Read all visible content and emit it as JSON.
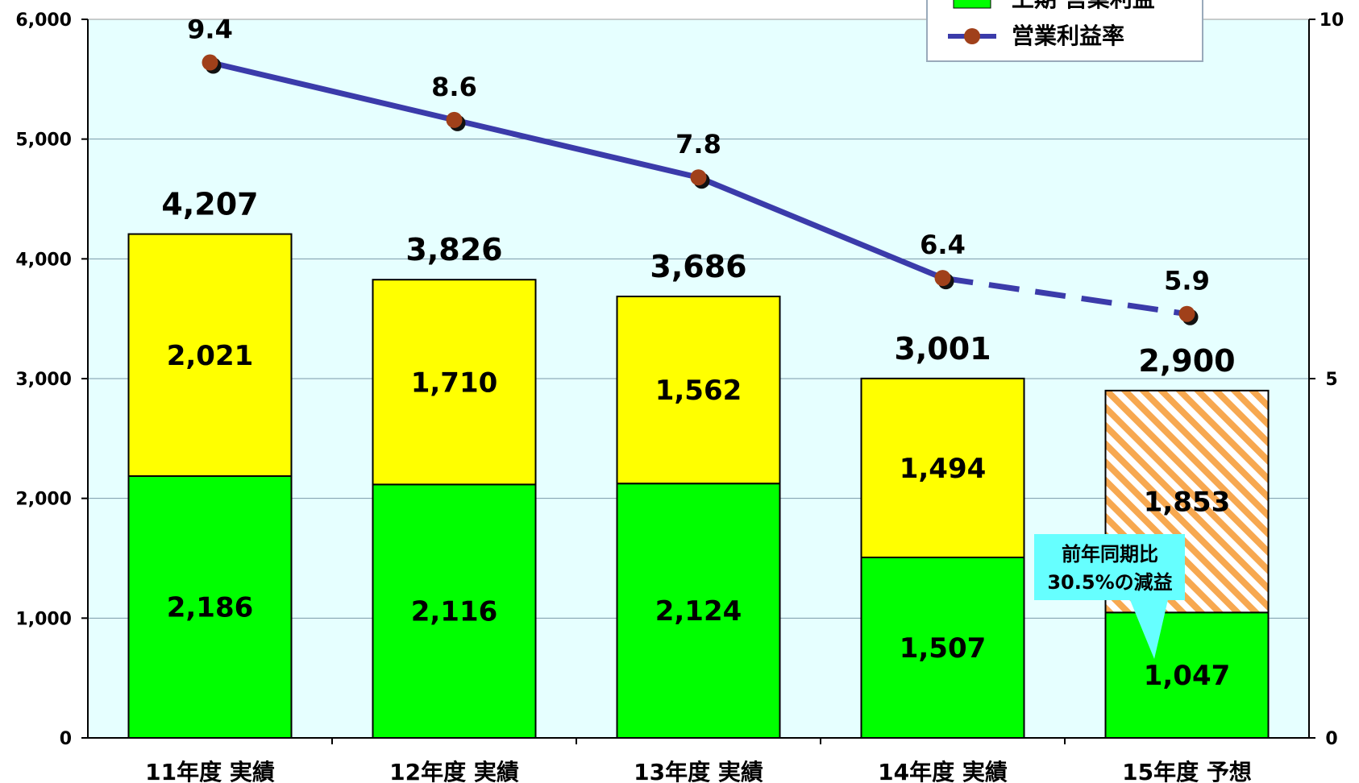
{
  "chart_data": {
    "type": "bar",
    "stacked": true,
    "categories": [
      "11年度 実績",
      "12年度 実績",
      "13年度 実績",
      "14年度 実績",
      "15年度 予想"
    ],
    "series": [
      {
        "name": "上期 営業利益",
        "color": "#00ff00",
        "values": [
          2186,
          2116,
          2124,
          1507,
          1047
        ]
      },
      {
        "name": "",
        "color": "#ffff00",
        "values": [
          2021,
          1710,
          1562,
          1494,
          1853
        ],
        "forecast_last": true,
        "forecast_color": "#f7a850"
      }
    ],
    "totals": [
      4207,
      3826,
      3686,
      3001,
      2900
    ],
    "segment_labels": {
      "lower": [
        "2,186",
        "2,116",
        "2,124",
        "1,507",
        "1,047"
      ],
      "upper": [
        "2,021",
        "1,710",
        "1,562",
        "1,494",
        "1,853"
      ]
    },
    "total_labels": [
      "4,207",
      "3,826",
      "3,686",
      "3,001",
      "2,900"
    ],
    "line": {
      "name": "営業利益率",
      "values": [
        9.4,
        8.6,
        7.8,
        6.4,
        5.9
      ],
      "labels": [
        "9.4",
        "8.6",
        "7.8",
        "6.4",
        "5.9"
      ],
      "dashed_last_segment": true,
      "line_color": "#3b3baa",
      "marker_color": "#a0401a"
    },
    "y_left": {
      "min": 0,
      "max": 6000,
      "ticks": [
        "0",
        "1,000",
        "2,000",
        "3,000",
        "4,000",
        "5,000",
        "6,000"
      ]
    },
    "y_right": {
      "min": 0,
      "max": 10,
      "ticks": [
        "0",
        "5",
        "10"
      ]
    },
    "legend": {
      "placement": "top-right",
      "entries": [
        "上期 営業利益",
        "営業利益率"
      ]
    },
    "callout": {
      "line1": "前年同期比",
      "line2": "30.5%の減益",
      "color": "#66ffff"
    },
    "plot_background": "#e6ffff",
    "gridlines": true
  }
}
